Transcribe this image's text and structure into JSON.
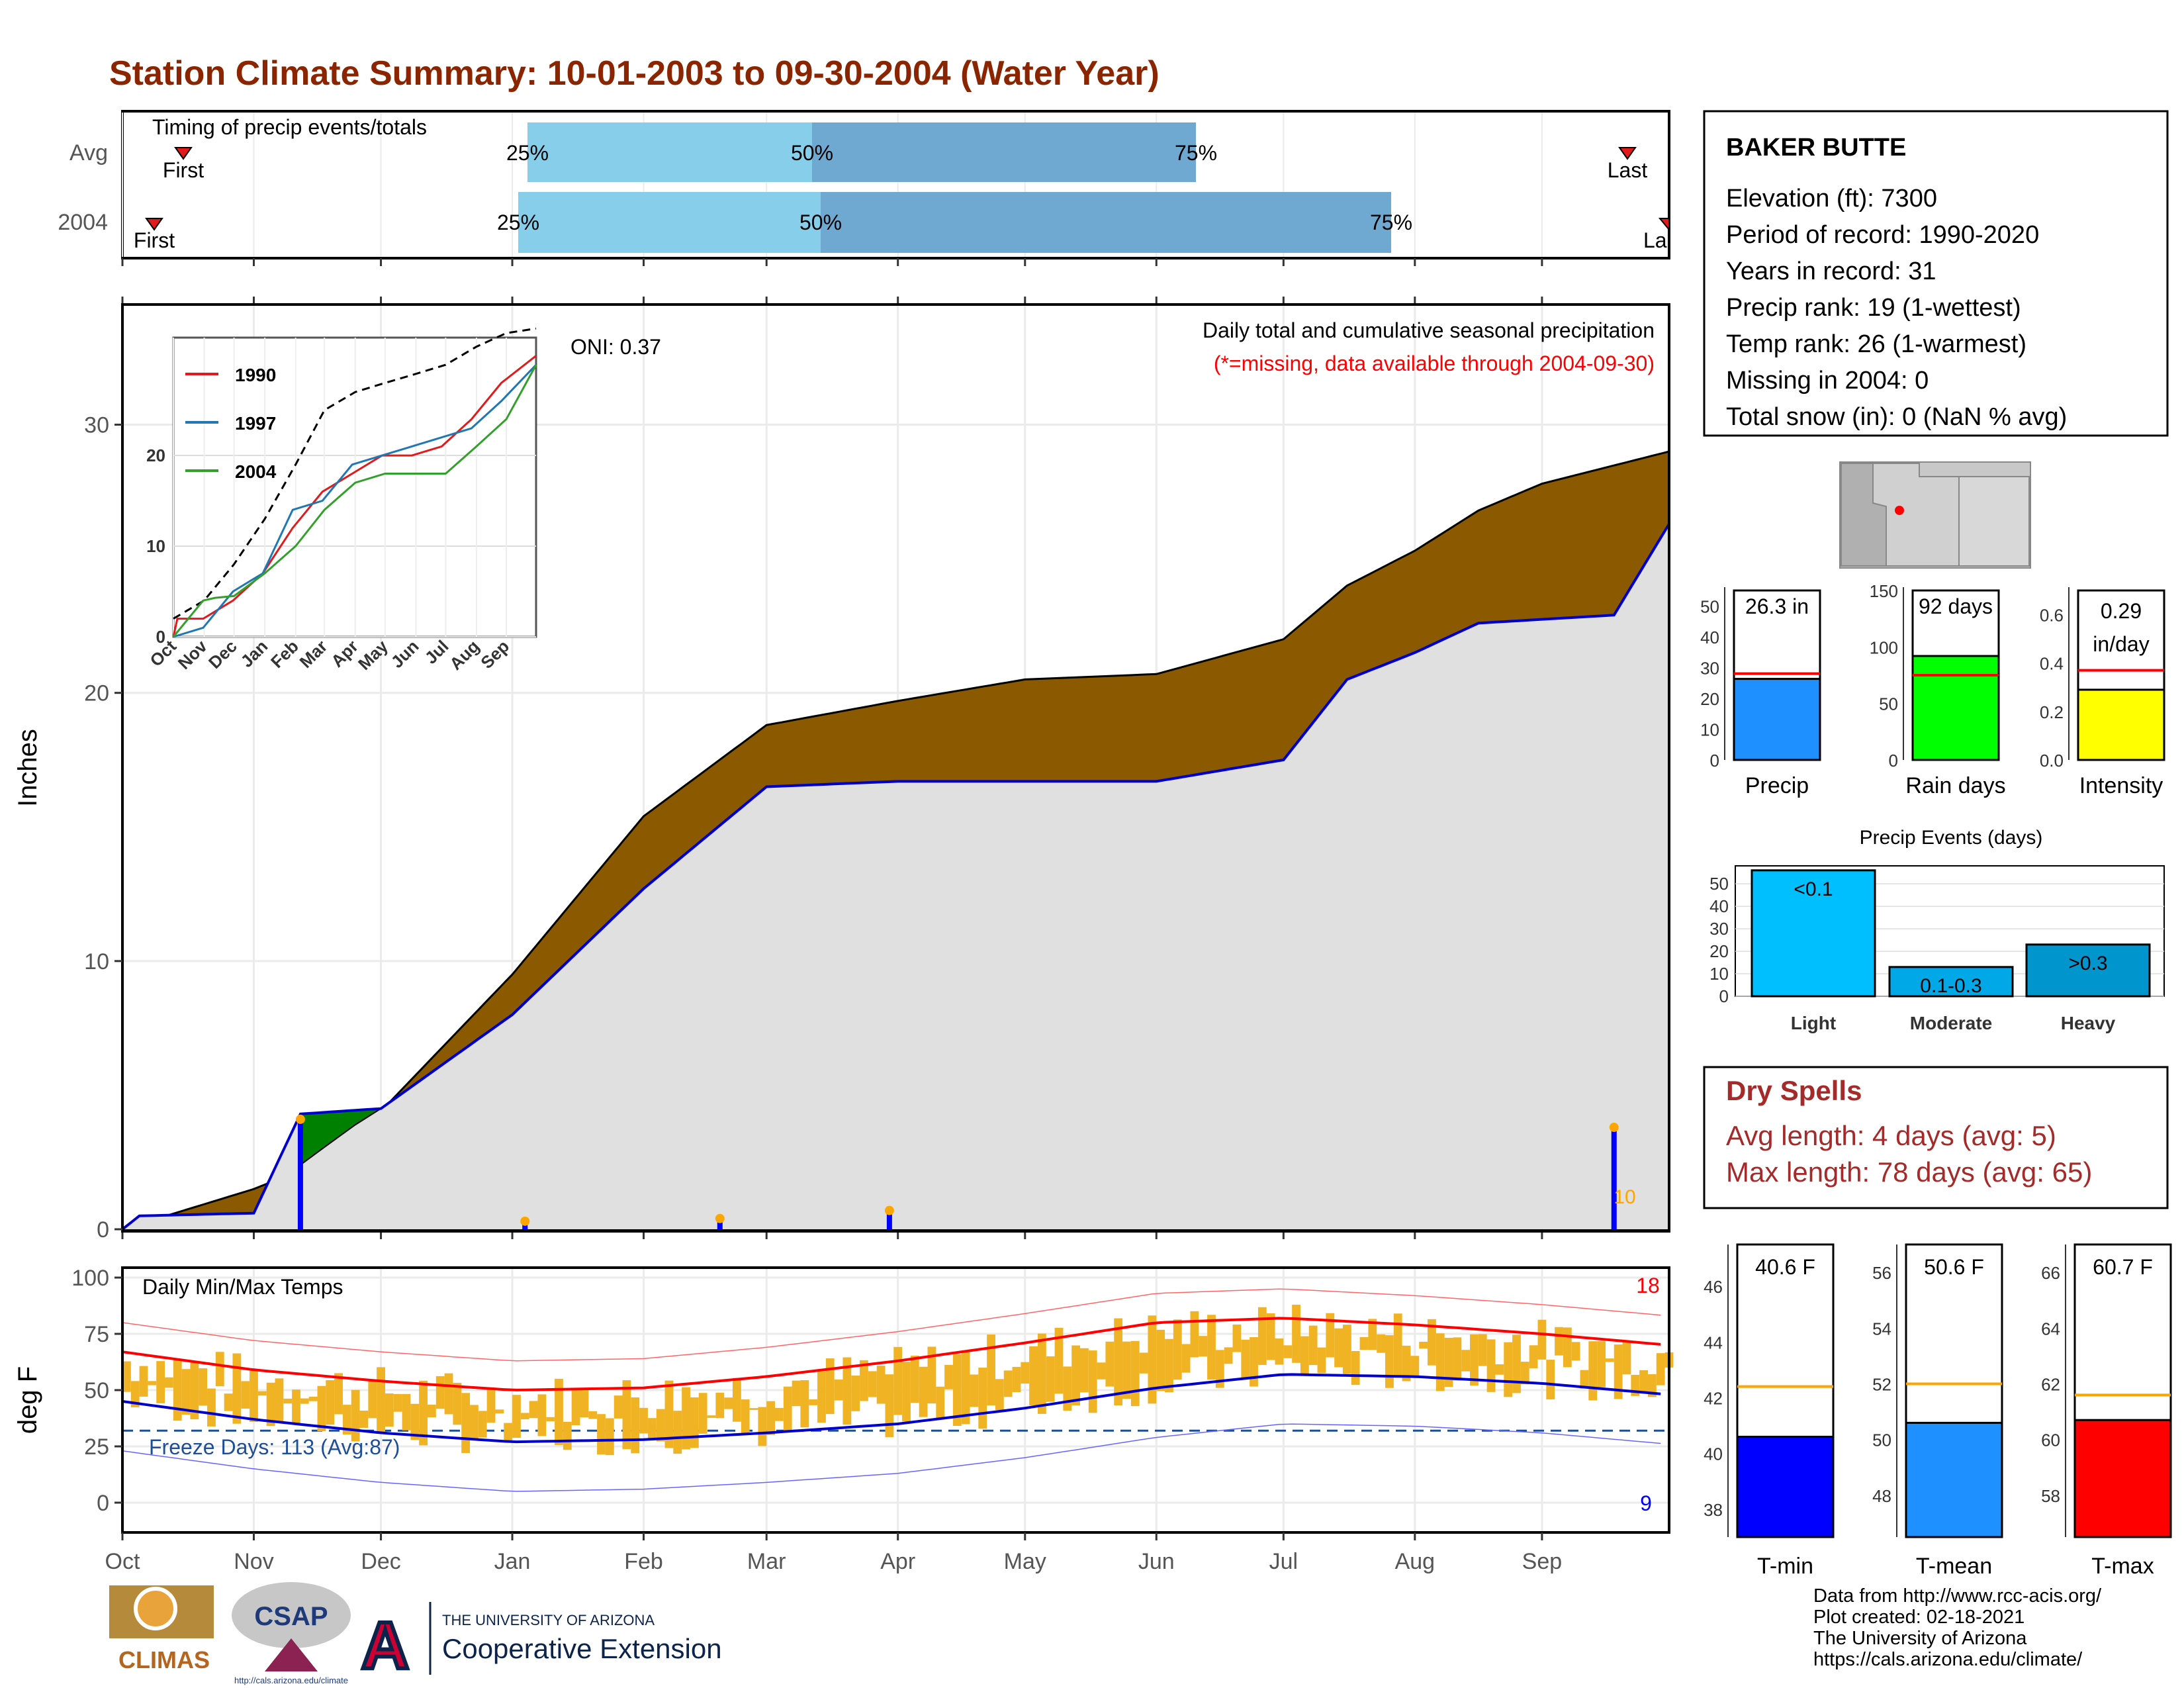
{
  "title": "Station Climate Summary: 10-01-2003 to 09-30-2004 (Water Year)",
  "timing": {
    "label": "Timing of precip events/totals",
    "rows": [
      "Avg",
      "2004"
    ],
    "first_label": "First",
    "last_label": "Last",
    "last_label_2004": "La",
    "pct_labels": [
      "25%",
      "50%",
      "75%"
    ]
  },
  "main": {
    "ylabel": "Inches",
    "oni_label": "ONI: 0.37",
    "desc1": "Daily total and cumulative seasonal precipitation",
    "desc2": "(*=missing, data available through 2004-09-30)",
    "count_label": "10",
    "yticks": [
      "0",
      "10",
      "20",
      "30"
    ]
  },
  "inset": {
    "legend": [
      "1990",
      "1997",
      "2004"
    ],
    "yticks": [
      "0",
      "10",
      "20"
    ],
    "months": [
      "Oct",
      "Nov",
      "Dec",
      "Jan",
      "Feb",
      "Mar",
      "Apr",
      "May",
      "Jun",
      "Jul",
      "Aug",
      "Sep"
    ]
  },
  "temps": {
    "ylabel": "deg F",
    "label": "Daily Min/Max Temps",
    "freeze_label": "Freeze Days: 113 (Avg:87)",
    "hot_count": "18",
    "cold_count": "9",
    "yticks": [
      "0",
      "25",
      "50",
      "75",
      "100"
    ]
  },
  "months": [
    "Oct",
    "Nov",
    "Dec",
    "Jan",
    "Feb",
    "Mar",
    "Apr",
    "May",
    "Jun",
    "Jul",
    "Aug",
    "Sep"
  ],
  "station": {
    "name": "BAKER BUTTE",
    "lines": [
      "Elevation (ft): 7300",
      "Period of record: 1990-2020",
      "Years in record: 31",
      "Precip rank: 19 (1-wettest)",
      "Temp rank: 26 (1-warmest)",
      "Missing in 2004: 0",
      "Total snow (in): 0 (NaN % avg)"
    ]
  },
  "precip_bars": [
    {
      "label": "Precip",
      "value_label": "26.3 in",
      "value": 26.3,
      "avg": 28,
      "ymax": 55,
      "ticks": [
        "0",
        "10",
        "20",
        "30",
        "40",
        "50"
      ],
      "color": "#1e90ff"
    },
    {
      "label": "Rain days",
      "value_label": "92 days",
      "value": 92,
      "avg": 75,
      "ymax": 150,
      "ticks": [
        "0",
        "50",
        "100",
        "150"
      ],
      "color": "#00ff00"
    },
    {
      "label": "Intensity",
      "value_label": "0.29",
      "value_label2": "in/day",
      "value": 0.29,
      "avg": 0.37,
      "ymax": 0.7,
      "ticks": [
        "0.0",
        "0.2",
        "0.4",
        "0.6"
      ],
      "color": "#ffff00"
    }
  ],
  "events": {
    "title": "Precip Events (days)",
    "categories": [
      "Light",
      "Moderate",
      "Heavy"
    ],
    "bar_labels": [
      "<0.1",
      "0.1-0.3",
      ">0.3"
    ],
    "values": [
      56,
      13,
      23
    ],
    "yticks": [
      "0",
      "10",
      "20",
      "30",
      "40",
      "50"
    ],
    "colors": [
      "#00bfff",
      "#00a8e8",
      "#0095cc"
    ]
  },
  "dry_spells": {
    "title": "Dry Spells",
    "avg": "Avg length: 4 days (avg: 5)",
    "max": "Max length: 78 days (avg: 65)"
  },
  "temp_bars": [
    {
      "label": "T-min",
      "value_label": "40.6 F",
      "value": 40.6,
      "avg": 42.4,
      "ymin": 37,
      "ymax": 47.5,
      "ticks": [
        "38",
        "40",
        "42",
        "44",
        "46"
      ],
      "tickvals": [
        38,
        40,
        42,
        44,
        46
      ],
      "color": "#0000ff"
    },
    {
      "label": "T-mean",
      "value_label": "50.6 F",
      "value": 50.6,
      "avg": 52.0,
      "ymin": 46.5,
      "ymax": 57,
      "ticks": [
        "48",
        "50",
        "52",
        "54",
        "56"
      ],
      "tickvals": [
        48,
        50,
        52,
        54,
        56
      ],
      "color": "#1e90ff"
    },
    {
      "label": "T-max",
      "value_label": "60.7 F",
      "value": 60.7,
      "avg": 61.6,
      "ymin": 56.5,
      "ymax": 67,
      "ticks": [
        "58",
        "60",
        "62",
        "64",
        "66"
      ],
      "tickvals": [
        58,
        60,
        62,
        64,
        66
      ],
      "color": "#ff0000"
    }
  ],
  "footer": {
    "lines": [
      "Data from http://www.rcc-acis.org/",
      "Plot created: 02-18-2021",
      "The University of Arizona",
      "https://cals.arizona.edu/climate/"
    ],
    "climas": "CLIMAS",
    "csap": "CSAP",
    "csap_url": "http://cals.arizona.edu/climate",
    "ua_top": "THE UNIVERSITY OF ARIZONA",
    "ua_bottom": "Cooperative Extension"
  },
  "chart_data": {
    "type": "area",
    "title": "Daily total and cumulative seasonal precipitation",
    "ylabel": "Inches",
    "ylim": [
      0,
      32.5
    ],
    "series": [
      {
        "name": "Avg",
        "x": [
          0,
          31,
          42,
          61,
          92,
          123,
          152,
          183,
          213,
          244,
          274,
          289,
          305,
          320,
          335,
          365
        ],
        "values": [
          0,
          1.5,
          2.2,
          4.4,
          9.5,
          15.4,
          18.8,
          19.7,
          20.5,
          20.7,
          22,
          24,
          25.3,
          26.8,
          27.8,
          29
        ]
      },
      {
        "name": "2004",
        "x": [
          0,
          4,
          31,
          42,
          61,
          92,
          123,
          152,
          183,
          213,
          244,
          274,
          289,
          305,
          320,
          352,
          365
        ],
        "values": [
          0,
          0.5,
          0.6,
          4.3,
          4.5,
          8,
          12.7,
          16.5,
          16.7,
          16.7,
          16.7,
          17.5,
          20.5,
          21.5,
          22.6,
          22.9,
          26.3
        ]
      }
    ],
    "daily_precip": [
      {
        "day": 42,
        "value": 4.1
      },
      {
        "day": 95,
        "value": 0.3
      },
      {
        "day": 141,
        "value": 0.4
      },
      {
        "day": 181,
        "value": 0.7
      },
      {
        "day": 352,
        "value": 3.8
      }
    ],
    "temps": {
      "type": "line",
      "ylabel": "deg F",
      "ylim": [
        -10,
        105
      ],
      "avg_max": [
        {
          "day": 0,
          "value": 67
        },
        {
          "day": 31,
          "value": 59
        },
        {
          "day": 61,
          "value": 54
        },
        {
          "day": 92,
          "value": 50
        },
        {
          "day": 123,
          "value": 51
        },
        {
          "day": 152,
          "value": 56
        },
        {
          "day": 183,
          "value": 63
        },
        {
          "day": 213,
          "value": 71
        },
        {
          "day": 244,
          "value": 80
        },
        {
          "day": 274,
          "value": 82
        },
        {
          "day": 305,
          "value": 79
        },
        {
          "day": 335,
          "value": 75
        },
        {
          "day": 365,
          "value": 70
        }
      ],
      "avg_min": [
        {
          "day": 0,
          "value": 45
        },
        {
          "day": 31,
          "value": 37
        },
        {
          "day": 61,
          "value": 31
        },
        {
          "day": 92,
          "value": 27
        },
        {
          "day": 123,
          "value": 28
        },
        {
          "day": 152,
          "value": 31
        },
        {
          "day": 183,
          "value": 35
        },
        {
          "day": 213,
          "value": 42
        },
        {
          "day": 244,
          "value": 51
        },
        {
          "day": 274,
          "value": 57
        },
        {
          "day": 305,
          "value": 56
        },
        {
          "day": 335,
          "value": 53
        },
        {
          "day": 365,
          "value": 48
        }
      ],
      "freeze_line": 32
    }
  }
}
